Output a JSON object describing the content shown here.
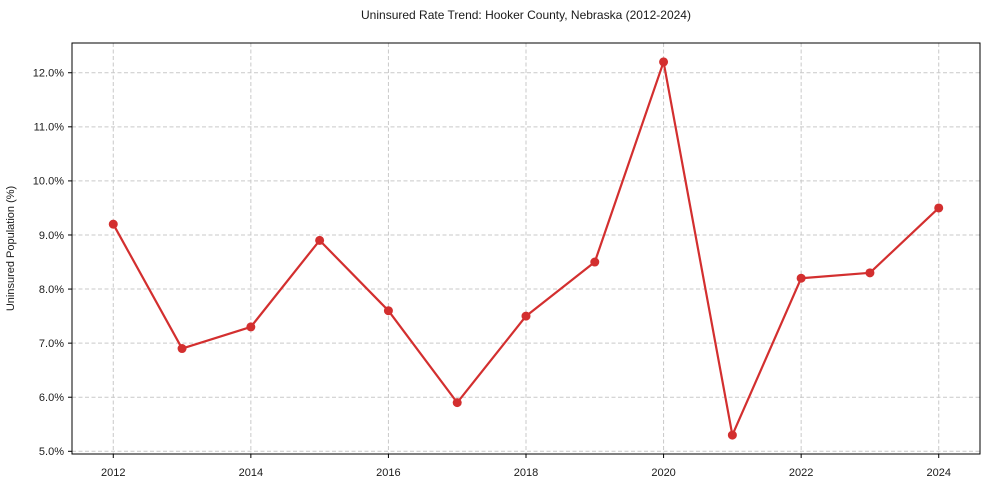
{
  "title": "Uninsured Rate Trend: Hooker County, Nebraska (2012-2024)",
  "chart_data": {
    "type": "line",
    "title": "Uninsured Rate Trend: Hooker County, Nebraska (2012-2024)",
    "xlabel": "",
    "ylabel": "Uninsured Population (%)",
    "x": [
      2012,
      2013,
      2014,
      2015,
      2016,
      2017,
      2018,
      2019,
      2020,
      2021,
      2022,
      2023,
      2024
    ],
    "series": [
      {
        "name": "Uninsured Rate",
        "values": [
          9.2,
          6.9,
          7.3,
          8.9,
          7.6,
          5.9,
          7.5,
          8.5,
          12.2,
          5.3,
          8.2,
          8.3,
          9.5
        ]
      }
    ],
    "xlim": [
      2011.4,
      2024.6
    ],
    "ylim": [
      4.95,
      12.55
    ],
    "xticks": [
      2012,
      2014,
      2016,
      2018,
      2020,
      2022,
      2024
    ],
    "xtick_labels": [
      "2012",
      "2014",
      "2016",
      "2018",
      "2020",
      "2022",
      "2024"
    ],
    "yticks": [
      5.0,
      6.0,
      7.0,
      8.0,
      9.0,
      10.0,
      11.0,
      12.0
    ],
    "ytick_labels": [
      "5.0%",
      "6.0%",
      "7.0%",
      "8.0%",
      "9.0%",
      "10.0%",
      "11.0%",
      "12.0%"
    ],
    "grid": true,
    "legend": "none",
    "colors": {
      "line": "#d32f2f",
      "marker": "#d32f2f",
      "grid": "#c9c9c9",
      "spine": "#000000",
      "text": "#1a1a1a",
      "background": "#ffffff"
    }
  }
}
